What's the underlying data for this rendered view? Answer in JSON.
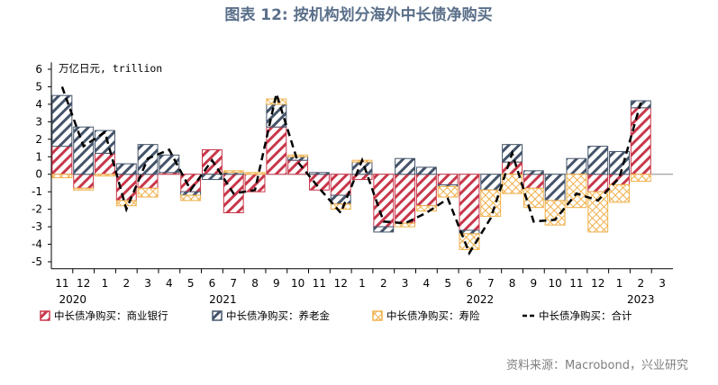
{
  "chart_data": {
    "type": "bar",
    "title": "图表 12: 按机构划分海外中长债净购买",
    "unit_label": "万亿日元, trillion",
    "source": "资料来源：Macrobond，兴业研究",
    "categories": [
      "11",
      "12",
      "1",
      "2",
      "3",
      "4",
      "5",
      "6",
      "7",
      "8",
      "9",
      "10",
      "11",
      "12",
      "1",
      "2",
      "3",
      "4",
      "5",
      "6",
      "7",
      "8",
      "9",
      "10",
      "11",
      "12",
      "1",
      "2",
      "3"
    ],
    "year_labels": [
      "2020",
      "2021",
      "2022",
      "2023"
    ],
    "ylim": [
      -5.4,
      6.4
    ],
    "yticks": [
      -5,
      -4,
      -3,
      -2,
      -1,
      0,
      1,
      2,
      3,
      4,
      5,
      6
    ],
    "series": [
      {
        "name": "中长债净购买：商业银行",
        "color": "#c8374a",
        "pattern": "hatch",
        "values": [
          1.6,
          -0.8,
          1.2,
          -1.5,
          -0.8,
          0.1,
          -1.0,
          1.4,
          -2.2,
          -1.0,
          2.7,
          0.8,
          -0.9,
          -1.2,
          -0.3,
          -3.0,
          -2.8,
          -1.8,
          -0.6,
          -3.2,
          0,
          0.7,
          -0.8,
          0,
          0,
          -1.0,
          -0.6,
          3.8,
          null
        ]
      },
      {
        "name": "中长债净购买：养老金",
        "color": "#44546a",
        "pattern": "hatch",
        "values": [
          2.9,
          2.7,
          1.3,
          0.6,
          1.7,
          1.0,
          -0.2,
          -0.3,
          0.1,
          0,
          1.3,
          0.2,
          0.1,
          -0.5,
          0.7,
          -0.3,
          0.9,
          0.4,
          -0.1,
          -0.2,
          -0.9,
          1.0,
          0.2,
          -1.5,
          0.9,
          1.6,
          1.3,
          0.4,
          null
        ]
      },
      {
        "name": "中长债净购买：寿险",
        "color": "#f0b04a",
        "pattern": "cross",
        "values": [
          -0.2,
          -0.1,
          -0.1,
          -0.3,
          -0.5,
          0,
          -0.3,
          0,
          0.1,
          0.1,
          0.3,
          0.1,
          0,
          -0.3,
          0.1,
          0,
          -0.2,
          -0.3,
          -0.6,
          -0.9,
          -1.5,
          -1.1,
          -1.1,
          -1.4,
          -1.9,
          -2.3,
          -1.0,
          -0.4,
          null
        ]
      },
      {
        "name": "中长债净购买：合计",
        "color": "#000000",
        "type": "line",
        "values": [
          5.0,
          1.6,
          2.4,
          -2.0,
          0.9,
          1.4,
          -0.9,
          0.8,
          -1.1,
          -0.9,
          4.6,
          0.7,
          -0.8,
          -2.2,
          0.8,
          -2.7,
          -2.8,
          -2.2,
          -1.4,
          -4.5,
          -2.5,
          1.2,
          -2.7,
          -2.6,
          -1.1,
          -1.5,
          -0.2,
          4.1,
          null
        ]
      }
    ]
  }
}
